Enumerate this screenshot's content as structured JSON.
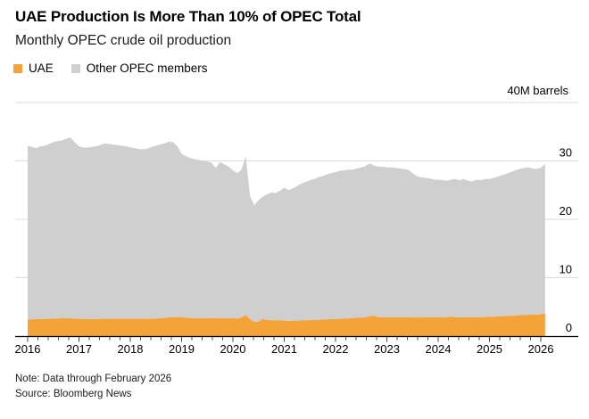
{
  "chart_data": {
    "type": "area",
    "stacked": true,
    "title": "UAE Production Is More Than 10% of OPEC Total",
    "subtitle": "Monthly OPEC crude oil production",
    "unit_label": "40M barrels",
    "x_range": {
      "start": "2016-01",
      "end": "2026-02",
      "interval": "monthly"
    },
    "x_tick_years": [
      2016,
      2017,
      2018,
      2019,
      2020,
      2021,
      2022,
      2023,
      2024,
      2025,
      2026
    ],
    "y_ticks": [
      0,
      10,
      20,
      30
    ],
    "ylim": [
      0,
      40
    ],
    "grid": true,
    "legend_position": "top-left",
    "units": "millions of barrels per day",
    "series": [
      {
        "name": "UAE",
        "color": "#F4A339",
        "values": [
          2.85,
          2.88,
          2.9,
          2.92,
          2.94,
          2.96,
          3.0,
          3.02,
          3.05,
          3.05,
          3.05,
          3.0,
          2.95,
          2.92,
          2.9,
          2.92,
          2.92,
          2.93,
          2.95,
          2.95,
          2.95,
          2.95,
          2.95,
          2.95,
          2.95,
          2.95,
          2.95,
          2.95,
          2.95,
          2.98,
          3.0,
          3.05,
          3.1,
          3.2,
          3.25,
          3.2,
          3.22,
          3.15,
          3.1,
          3.08,
          3.06,
          3.05,
          3.08,
          3.1,
          3.08,
          3.1,
          3.08,
          3.05,
          3.05,
          3.0,
          3.2,
          3.6,
          2.9,
          2.45,
          2.5,
          2.95,
          2.75,
          2.7,
          2.73,
          2.7,
          2.66,
          2.62,
          2.64,
          2.66,
          2.68,
          2.7,
          2.72,
          2.75,
          2.78,
          2.82,
          2.86,
          2.9,
          2.93,
          2.96,
          3.0,
          3.04,
          3.08,
          3.12,
          3.16,
          3.2,
          3.4,
          3.45,
          3.25,
          3.22,
          3.2,
          3.2,
          3.22,
          3.2,
          3.2,
          3.22,
          3.2,
          3.18,
          3.2,
          3.22,
          3.2,
          3.2,
          3.2,
          3.2,
          3.22,
          3.35,
          3.22,
          3.2,
          3.22,
          3.2,
          3.2,
          3.22,
          3.24,
          3.26,
          3.3,
          3.32,
          3.36,
          3.4,
          3.44,
          3.48,
          3.52,
          3.56,
          3.6,
          3.64,
          3.66,
          3.68,
          3.72,
          3.85
        ]
      },
      {
        "name": "Other OPEC members",
        "color": "#CFCFCF",
        "values": [
          29.75,
          29.52,
          29.3,
          29.58,
          29.66,
          29.94,
          30.2,
          30.38,
          30.45,
          30.75,
          30.95,
          30.2,
          29.55,
          29.38,
          29.4,
          29.48,
          29.58,
          29.77,
          30.05,
          29.95,
          29.85,
          29.75,
          29.65,
          29.55,
          29.35,
          29.25,
          29.05,
          29.05,
          29.15,
          29.42,
          29.6,
          29.75,
          29.9,
          30.1,
          29.95,
          29.3,
          27.98,
          27.65,
          27.4,
          27.22,
          27.14,
          26.95,
          26.82,
          26.6,
          25.72,
          26.7,
          26.32,
          25.95,
          25.35,
          24.9,
          25.3,
          27.2,
          21.1,
          19.95,
          20.8,
          20.95,
          21.55,
          21.9,
          21.77,
          22.2,
          22.74,
          22.38,
          22.66,
          23.04,
          23.42,
          23.7,
          23.98,
          24.15,
          24.42,
          24.58,
          24.84,
          25.0,
          25.17,
          25.34,
          25.4,
          25.46,
          25.42,
          25.58,
          25.74,
          25.9,
          26.2,
          25.75,
          25.75,
          25.78,
          25.7,
          25.7,
          25.58,
          25.5,
          25.4,
          25.28,
          24.7,
          24.22,
          24.0,
          23.88,
          23.8,
          23.6,
          23.6,
          23.5,
          23.38,
          23.45,
          23.68,
          23.5,
          23.68,
          23.4,
          23.3,
          23.58,
          23.46,
          23.64,
          23.6,
          23.78,
          23.94,
          24.2,
          24.36,
          24.62,
          24.88,
          25.04,
          25.2,
          25.26,
          25.04,
          24.92,
          25.08,
          25.65
        ]
      }
    ]
  },
  "footer": {
    "note": "Note: Data through February 2026",
    "source": "Source: Bloomberg News"
  }
}
